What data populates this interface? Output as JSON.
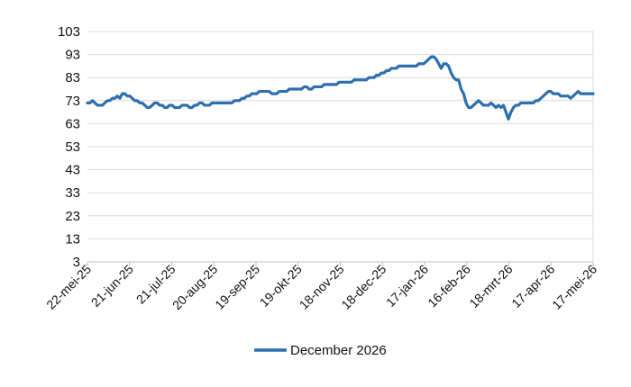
{
  "chart_data": {
    "type": "line",
    "title": "",
    "xlabel": "",
    "ylabel": "",
    "ylim": [
      3,
      103
    ],
    "yticks": [
      3,
      13,
      23,
      33,
      43,
      53,
      63,
      73,
      83,
      93,
      103
    ],
    "xticks": [
      "22-mei-25",
      "21-jun-25",
      "21-jul-25",
      "20-aug-25",
      "19-sep-25",
      "19-okt-25",
      "18-nov-25",
      "18-dec-25",
      "17-jan-26",
      "16-feb-26",
      "18-mrt-26",
      "17-apr-26",
      "17-mei-26"
    ],
    "grid": "horizontal",
    "legend_position": "bottom",
    "colors": {
      "line": "#2E6FAE",
      "grid": "#D9D9D9",
      "axis": "#BFBFBF"
    },
    "series": [
      {
        "name": "December 2026",
        "x_start": "22-mei-25",
        "x_end": "17-mei-26",
        "values": [
          72,
          72,
          73,
          72,
          71,
          71,
          71,
          72,
          73,
          73,
          74,
          74,
          75,
          74,
          76,
          76,
          75,
          75,
          74,
          73,
          73,
          72,
          72,
          71,
          70,
          70,
          71,
          72,
          72,
          71,
          71,
          70,
          70,
          71,
          71,
          70,
          70,
          70,
          71,
          71,
          71,
          70,
          70,
          71,
          71,
          72,
          72,
          71,
          71,
          71,
          72,
          72,
          72,
          72,
          72,
          72,
          72,
          72,
          72,
          73,
          73,
          73,
          74,
          74,
          75,
          75,
          76,
          76,
          76,
          77,
          77,
          77,
          77,
          77,
          76,
          76,
          76,
          77,
          77,
          77,
          77,
          78,
          78,
          78,
          78,
          78,
          78,
          79,
          79,
          78,
          78,
          79,
          79,
          79,
          79,
          80,
          80,
          80,
          80,
          80,
          80,
          81,
          81,
          81,
          81,
          81,
          81,
          82,
          82,
          82,
          82,
          82,
          82,
          83,
          83,
          83,
          84,
          84,
          85,
          85,
          86,
          86,
          87,
          87,
          87,
          88,
          88,
          88,
          88,
          88,
          88,
          88,
          88,
          89,
          89,
          89,
          90,
          91,
          92,
          92,
          91,
          89,
          87,
          89,
          89,
          88,
          85,
          83,
          82,
          82,
          78,
          76,
          72,
          70,
          70,
          71,
          72,
          73,
          72,
          71,
          71,
          71,
          72,
          71,
          70,
          71,
          70,
          71,
          68,
          65,
          68,
          70,
          71,
          71,
          72,
          72,
          72,
          72,
          72,
          72,
          73,
          73,
          74,
          75,
          76,
          77,
          77,
          76,
          76,
          76,
          75,
          75,
          75,
          75,
          74,
          75,
          76,
          77,
          76,
          76,
          76,
          76,
          76,
          76
        ]
      }
    ]
  }
}
